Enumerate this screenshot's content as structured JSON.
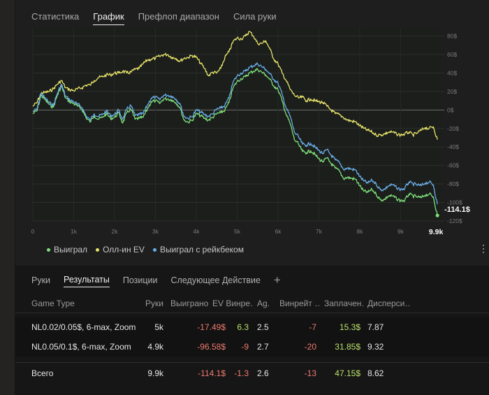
{
  "colors": {
    "won": "#7fe07a",
    "allin_ev": "#e8e46a",
    "won_rakeback": "#6aaee8",
    "negative": "#ee7a6f",
    "positive": "#b9e06a"
  },
  "top_tabs": [
    {
      "label": "Статистика",
      "active": false
    },
    {
      "label": "График",
      "active": true
    },
    {
      "label": "Префлоп диапазон",
      "active": false
    },
    {
      "label": "Сила руки",
      "active": false
    }
  ],
  "chart_data": {
    "type": "line",
    "xlabel": "",
    "ylabel": "",
    "xlim": [
      0,
      10000
    ],
    "ylim": [
      -120,
      85
    ],
    "x_ticks": [
      {
        "value": 0,
        "label": "0"
      },
      {
        "value": 1000,
        "label": "1k"
      },
      {
        "value": 2000,
        "label": "2k"
      },
      {
        "value": 3000,
        "label": "3k"
      },
      {
        "value": 4000,
        "label": "4k"
      },
      {
        "value": 5000,
        "label": "5k"
      },
      {
        "value": 6000,
        "label": "6k"
      },
      {
        "value": 7000,
        "label": "7k"
      },
      {
        "value": 8000,
        "label": "8k"
      },
      {
        "value": 9000,
        "label": "9k"
      }
    ],
    "y_ticks": [
      {
        "value": 80,
        "label": "80$"
      },
      {
        "value": 60,
        "label": "60$"
      },
      {
        "value": 40,
        "label": "40$"
      },
      {
        "value": 20,
        "label": "20$"
      },
      {
        "value": 0,
        "label": "0$"
      },
      {
        "value": -20,
        "label": "-20$"
      },
      {
        "value": -40,
        "label": "-40$"
      },
      {
        "value": -60,
        "label": "-60$"
      },
      {
        "value": -80,
        "label": "-80$"
      },
      {
        "value": -100,
        "label": "-100$"
      },
      {
        "value": -120,
        "label": "-120$"
      }
    ],
    "end_x_label": "9.9k",
    "end_value_label": "-114.1$",
    "grid": true,
    "legend_position": "bottom-left",
    "series": [
      {
        "name": "Выиграл",
        "color_key": "won",
        "x": [
          0,
          100,
          200,
          300,
          400,
          500,
          600,
          700,
          800,
          900,
          1000,
          1100,
          1200,
          1300,
          1400,
          1500,
          1600,
          1700,
          1800,
          1900,
          2000,
          2100,
          2200,
          2300,
          2400,
          2500,
          2600,
          2700,
          2800,
          2900,
          3000,
          3100,
          3200,
          3300,
          3400,
          3500,
          3600,
          3700,
          3800,
          3900,
          4000,
          4100,
          4200,
          4300,
          4400,
          4500,
          4600,
          4700,
          4800,
          4900,
          5000,
          5100,
          5200,
          5300,
          5400,
          5500,
          5600,
          5700,
          5800,
          5900,
          6000,
          6100,
          6200,
          6300,
          6400,
          6500,
          6600,
          6700,
          6800,
          6900,
          7000,
          7100,
          7200,
          7300,
          7400,
          7500,
          7600,
          7700,
          7800,
          7900,
          8000,
          8100,
          8200,
          8300,
          8400,
          8500,
          8600,
          8700,
          8800,
          8900,
          9000,
          9100,
          9200,
          9300,
          9400,
          9500,
          9600,
          9700,
          9800,
          9900
        ],
        "values": [
          -4,
          -1,
          16,
          11,
          6,
          3,
          16,
          26,
          13,
          9,
          7,
          4,
          1,
          -8,
          -13,
          -6,
          -10,
          -8,
          -4,
          -9,
          -8,
          -3,
          -14,
          -3,
          1,
          -10,
          -9,
          -8,
          1,
          9,
          10,
          7,
          12,
          12,
          11,
          8,
          3,
          -11,
          -13,
          -11,
          -4,
          -6,
          -9,
          -11,
          -8,
          -4,
          -3,
          0,
          8,
          24,
          31,
          34,
          36,
          40,
          42,
          44,
          41,
          38,
          33,
          26,
          22,
          10,
          -5,
          -15,
          -32,
          -37,
          -45,
          -46,
          -44,
          -48,
          -53,
          -56,
          -52,
          -58,
          -63,
          -66,
          -74,
          -73,
          -74,
          -75,
          -82,
          -88,
          -89,
          -86,
          -91,
          -97,
          -97,
          -93,
          -93,
          -96,
          -98,
          -98,
          -91,
          -93,
          -94,
          -95,
          -92,
          -91,
          -94,
          -114.1
        ]
      },
      {
        "name": "Олл-ин EV",
        "color_key": "allin_ev",
        "x": [
          0,
          100,
          200,
          300,
          400,
          500,
          600,
          700,
          800,
          900,
          1000,
          1100,
          1200,
          1300,
          1400,
          1500,
          1600,
          1700,
          1800,
          1900,
          2000,
          2100,
          2200,
          2300,
          2400,
          2500,
          2600,
          2700,
          2800,
          2900,
          3000,
          3100,
          3200,
          3300,
          3400,
          3500,
          3600,
          3700,
          3800,
          3900,
          4000,
          4100,
          4200,
          4300,
          4400,
          4500,
          4600,
          4700,
          4800,
          4900,
          5000,
          5100,
          5200,
          5300,
          5400,
          5500,
          5600,
          5700,
          5800,
          5900,
          6000,
          6100,
          6200,
          6300,
          6400,
          6500,
          6600,
          6700,
          6800,
          6900,
          7000,
          7100,
          7200,
          7300,
          7400,
          7500,
          7600,
          7700,
          7800,
          7900,
          8000,
          8100,
          8200,
          8300,
          8400,
          8500,
          8600,
          8700,
          8800,
          8900,
          9000,
          9100,
          9200,
          9300,
          9400,
          9500,
          9600,
          9700,
          9800,
          9900
        ],
        "values": [
          4,
          8,
          18,
          19,
          20,
          23,
          28,
          32,
          24,
          22,
          21,
          23,
          24,
          27,
          27,
          32,
          35,
          36,
          38,
          38,
          40,
          40,
          42,
          40,
          41,
          44,
          45,
          50,
          54,
          55,
          56,
          58,
          60,
          60,
          57,
          56,
          53,
          56,
          57,
          59,
          57,
          51,
          45,
          37,
          41,
          40,
          45,
          57,
          63,
          74,
          78,
          77,
          80,
          85,
          80,
          72,
          72,
          75,
          66,
          55,
          50,
          40,
          32,
          22,
          16,
          13,
          14,
          10,
          12,
          10,
          9,
          8,
          4,
          0,
          -4,
          -5,
          -8,
          -11,
          -12,
          -13,
          -17,
          -20,
          -22,
          -24,
          -27,
          -27,
          -26,
          -24,
          -24,
          -26,
          -27,
          -26,
          -24,
          -27,
          -25,
          -22,
          -19,
          -20,
          -18,
          -32
        ]
      },
      {
        "name": "Выиграл с рейкбеком",
        "color_key": "won_rakeback",
        "x": [
          0,
          100,
          200,
          300,
          400,
          500,
          600,
          700,
          800,
          900,
          1000,
          1100,
          1200,
          1300,
          1400,
          1500,
          1600,
          1700,
          1800,
          1900,
          2000,
          2100,
          2200,
          2300,
          2400,
          2500,
          2600,
          2700,
          2800,
          2900,
          3000,
          3100,
          3200,
          3300,
          3400,
          3500,
          3600,
          3700,
          3800,
          3900,
          4000,
          4100,
          4200,
          4300,
          4400,
          4500,
          4600,
          4700,
          4800,
          4900,
          5000,
          5100,
          5200,
          5300,
          5400,
          5500,
          5600,
          5700,
          5800,
          5900,
          6000,
          6100,
          6200,
          6300,
          6400,
          6500,
          6600,
          6700,
          6800,
          6900,
          7000,
          7100,
          7200,
          7300,
          7400,
          7500,
          7600,
          7700,
          7800,
          7900,
          8000,
          8100,
          8200,
          8300,
          8400,
          8500,
          8600,
          8700,
          8800,
          8900,
          9000,
          9100,
          9200,
          9300,
          9400,
          9500,
          9600,
          9700,
          9800,
          9900
        ],
        "values": [
          -2,
          1,
          18,
          13,
          8,
          5,
          18,
          28,
          15,
          11,
          9,
          6,
          3,
          -6,
          -11,
          -4,
          -7,
          -5,
          -1,
          -6,
          -5,
          0,
          -10,
          1,
          5,
          -6,
          -5,
          -4,
          5,
          13,
          14,
          11,
          16,
          16,
          15,
          12,
          7,
          -7,
          -9,
          -7,
          0,
          -2,
          -5,
          -7,
          -4,
          1,
          2,
          5,
          13,
          30,
          37,
          40,
          42,
          46,
          48,
          50,
          47,
          44,
          39,
          33,
          29,
          17,
          2,
          -7,
          -24,
          -29,
          -37,
          -38,
          -36,
          -40,
          -44,
          -47,
          -43,
          -49,
          -54,
          -57,
          -64,
          -63,
          -64,
          -65,
          -72,
          -77,
          -79,
          -76,
          -80,
          -86,
          -86,
          -82,
          -81,
          -84,
          -86,
          -85,
          -78,
          -80,
          -81,
          -82,
          -79,
          -78,
          -81,
          -102
        ]
      }
    ]
  },
  "legend": [
    {
      "label": "Выиграл",
      "color_key": "won"
    },
    {
      "label": "Олл-ин EV",
      "color_key": "allin_ev"
    },
    {
      "label": "Выиграл с рейкбеком",
      "color_key": "won_rakeback"
    }
  ],
  "bottom_tabs": [
    {
      "label": "Руки",
      "active": false
    },
    {
      "label": "Результаты",
      "active": true
    },
    {
      "label": "Позиции",
      "active": false
    },
    {
      "label": "Следующее Действие",
      "active": false
    }
  ],
  "add_tab_symbol": "+",
  "table": {
    "headers": {
      "game_type": "Game Type",
      "hands": "Руки",
      "won": "Выиграно",
      "ev_won": "EV Винре…",
      "ag": "Ag.",
      "winrate": "Винрейт …",
      "paid": "Заплачен…",
      "variance": "Дисперси…"
    },
    "rows": [
      {
        "game_type": "NL0.02/0.05$, 6-max, Zoom",
        "hands": "5k",
        "won": "-17.49$",
        "ev_won": "6.3",
        "ag": "2.5",
        "winrate": "-7",
        "paid": "15.3$",
        "variance": "7.87"
      },
      {
        "game_type": "NL0.05/0.1$, 6-max, Zoom",
        "hands": "4.9k",
        "won": "-96.58$",
        "ev_won": "-9",
        "ag": "2.7",
        "winrate": "-20",
        "paid": "31.85$",
        "variance": "9.32"
      }
    ],
    "total": {
      "game_type": "Всего",
      "hands": "9.9k",
      "won": "-114.1$",
      "ev_won": "-1.3",
      "ag": "2.6",
      "winrate": "-13",
      "paid": "47.15$",
      "variance": "8.62"
    }
  }
}
